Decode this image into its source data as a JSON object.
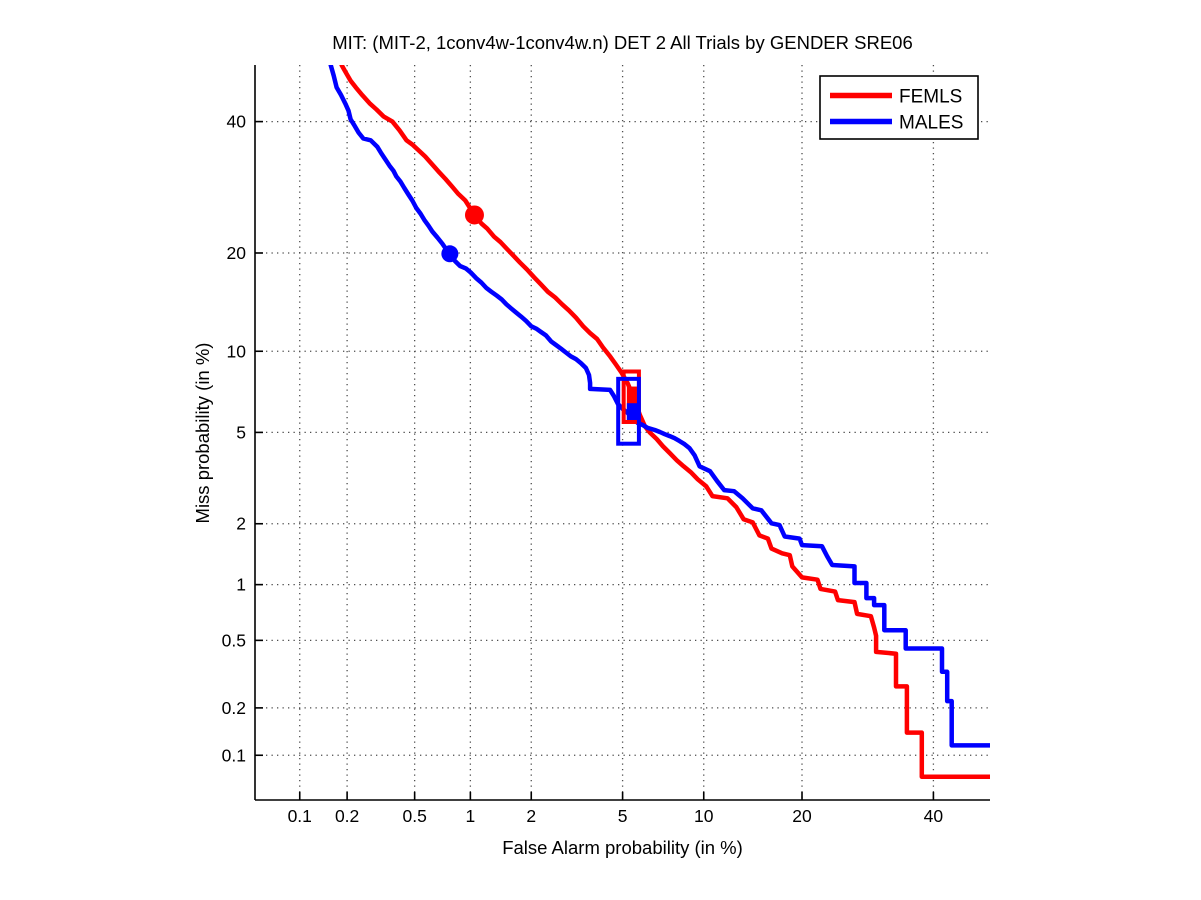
{
  "figure": {
    "title": "MIT: (MIT-2, 1conv4w-1conv4w.n) DET 2 All Trials by GENDER SRE06",
    "xlabel": "False Alarm probability (in %)",
    "ylabel": "Miss probability (in %)"
  },
  "chart_data": {
    "type": "line",
    "subtype": "DET curve, probit-probit (normal deviate) scale",
    "title": "MIT: (MIT-2, 1conv4w-1conv4w.n) DET 2 All Trials by GENDER SRE06",
    "xlabel": "False Alarm probability (in %)",
    "ylabel": "Miss probability (in %)",
    "xlim_pct": [
      0.05,
      50
    ],
    "ylim_pct": [
      0.05,
      50
    ],
    "x_ticks_pct": [
      0.1,
      0.2,
      0.5,
      1,
      2,
      5,
      10,
      20,
      40
    ],
    "y_ticks_pct": [
      0.1,
      0.2,
      0.5,
      1,
      2,
      5,
      10,
      20,
      40
    ],
    "grid": "dotted",
    "axis_color": "#000000",
    "legend": {
      "position": "top-right",
      "entries": [
        {
          "label": "FEMLS",
          "color": "#ff0000"
        },
        {
          "label": "MALES",
          "color": "#0000ff"
        }
      ]
    },
    "series": [
      {
        "name": "FEMLS",
        "color": "#ff0000",
        "points_fa_miss_pct": [
          [
            0.185,
            50
          ],
          [
            0.196,
            48.7
          ],
          [
            0.21,
            47.2
          ],
          [
            0.226,
            46.0
          ],
          [
            0.248,
            44.6
          ],
          [
            0.274,
            43.2
          ],
          [
            0.301,
            42.1
          ],
          [
            0.331,
            40.9
          ],
          [
            0.373,
            40.0
          ],
          [
            0.41,
            38.5
          ],
          [
            0.45,
            36.8
          ],
          [
            0.485,
            36.1
          ],
          [
            0.523,
            35.2
          ],
          [
            0.573,
            34.1
          ],
          [
            0.627,
            32.8
          ],
          [
            0.676,
            31.7
          ],
          [
            0.738,
            30.5
          ],
          [
            0.803,
            29.3
          ],
          [
            0.865,
            28.2
          ],
          [
            0.941,
            27.2
          ],
          [
            1.05,
            25.1
          ],
          [
            1.14,
            23.9
          ],
          [
            1.22,
            23.2
          ],
          [
            1.32,
            22.1
          ],
          [
            1.42,
            21.4
          ],
          [
            1.53,
            20.5
          ],
          [
            1.64,
            19.7
          ],
          [
            1.77,
            18.8
          ],
          [
            1.91,
            18.0
          ],
          [
            2.06,
            17.1
          ],
          [
            2.22,
            16.3
          ],
          [
            2.39,
            15.5
          ],
          [
            2.58,
            14.9
          ],
          [
            2.77,
            14.2
          ],
          [
            2.97,
            13.6
          ],
          [
            3.19,
            12.9
          ],
          [
            3.43,
            12.1
          ],
          [
            3.67,
            11.5
          ],
          [
            3.93,
            11.0
          ],
          [
            4.16,
            10.3
          ],
          [
            4.45,
            9.6
          ],
          [
            4.7,
            9.0
          ],
          [
            4.96,
            8.4
          ],
          [
            5.24,
            7.7
          ],
          [
            5.44,
            7.1
          ],
          [
            5.64,
            6.5
          ],
          [
            5.85,
            5.85
          ],
          [
            6.11,
            5.3
          ],
          [
            6.38,
            5.0
          ],
          [
            6.79,
            4.7
          ],
          [
            7.15,
            4.4
          ],
          [
            7.58,
            4.12
          ],
          [
            8.04,
            3.84
          ],
          [
            8.51,
            3.62
          ],
          [
            9.01,
            3.42
          ],
          [
            9.53,
            3.18
          ],
          [
            10.2,
            2.96
          ],
          [
            10.7,
            2.68
          ],
          [
            12.0,
            2.62
          ],
          [
            12.8,
            2.39
          ],
          [
            13.5,
            2.1
          ],
          [
            14.4,
            2.03
          ],
          [
            15.1,
            1.76
          ],
          [
            16.0,
            1.7
          ],
          [
            16.4,
            1.52
          ],
          [
            17.6,
            1.44
          ],
          [
            18.5,
            1.41
          ],
          [
            18.8,
            1.24
          ],
          [
            20.0,
            1.09
          ],
          [
            22.0,
            1.06
          ],
          [
            22.4,
            0.95
          ],
          [
            24.4,
            0.92
          ],
          [
            24.8,
            0.83
          ],
          [
            27.2,
            0.81
          ],
          [
            27.6,
            0.7
          ],
          [
            29.7,
            0.68
          ],
          [
            30.2,
            0.59
          ],
          [
            30.5,
            0.53
          ],
          [
            30.5,
            0.43
          ],
          [
            33.7,
            0.42
          ],
          [
            33.7,
            0.27
          ],
          [
            35.5,
            0.27
          ],
          [
            35.5,
            0.14
          ],
          [
            38.0,
            0.14
          ],
          [
            38.0,
            0.072
          ],
          [
            50,
            0.072
          ]
        ],
        "dot_marker": {
          "fa": 1.05,
          "miss": 25.1
        },
        "box_marker": {
          "fa": [
            5.05,
            5.8
          ],
          "miss": [
            5.5,
            8.5
          ]
        },
        "box_marker_fill": {
          "fa": [
            5.2,
            5.7
          ],
          "miss": [
            5.6,
            7.5
          ]
        }
      },
      {
        "name": "MALES",
        "color": "#0000ff",
        "points_fa_miss_pct": [
          [
            0.158,
            50
          ],
          [
            0.165,
            48.1
          ],
          [
            0.172,
            46.0
          ],
          [
            0.183,
            44.7
          ],
          [
            0.196,
            43.0
          ],
          [
            0.204,
            41.9
          ],
          [
            0.21,
            40.4
          ],
          [
            0.222,
            39.3
          ],
          [
            0.235,
            38.1
          ],
          [
            0.251,
            37.1
          ],
          [
            0.278,
            36.8
          ],
          [
            0.305,
            35.7
          ],
          [
            0.322,
            34.6
          ],
          [
            0.34,
            33.6
          ],
          [
            0.359,
            32.6
          ],
          [
            0.378,
            31.8
          ],
          [
            0.393,
            30.9
          ],
          [
            0.415,
            30.1
          ],
          [
            0.437,
            29.1
          ],
          [
            0.461,
            28.1
          ],
          [
            0.485,
            27.2
          ],
          [
            0.511,
            26.1
          ],
          [
            0.539,
            25.3
          ],
          [
            0.566,
            24.4
          ],
          [
            0.597,
            23.6
          ],
          [
            0.627,
            22.8
          ],
          [
            0.668,
            22.0
          ],
          [
            0.71,
            21.2
          ],
          [
            0.775,
            19.9
          ],
          [
            0.832,
            19.0
          ],
          [
            0.885,
            18.4
          ],
          [
            0.95,
            18.1
          ],
          [
            1.01,
            17.6
          ],
          [
            1.07,
            17.0
          ],
          [
            1.14,
            16.5
          ],
          [
            1.21,
            15.9
          ],
          [
            1.28,
            15.5
          ],
          [
            1.36,
            15.1
          ],
          [
            1.44,
            14.7
          ],
          [
            1.52,
            14.2
          ],
          [
            1.6,
            13.8
          ],
          [
            1.69,
            13.4
          ],
          [
            1.79,
            13.0
          ],
          [
            1.89,
            12.6
          ],
          [
            2.0,
            12.1
          ],
          [
            2.11,
            11.9
          ],
          [
            2.22,
            11.6
          ],
          [
            2.34,
            11.3
          ],
          [
            2.47,
            10.8
          ],
          [
            2.6,
            10.5
          ],
          [
            2.74,
            10.2
          ],
          [
            2.88,
            9.9
          ],
          [
            3.03,
            9.6
          ],
          [
            3.19,
            9.4
          ],
          [
            3.35,
            9.1
          ],
          [
            3.52,
            8.75
          ],
          [
            3.63,
            8.26
          ],
          [
            3.67,
            7.73
          ],
          [
            3.67,
            7.35
          ],
          [
            4.45,
            7.29
          ],
          [
            4.61,
            6.92
          ],
          [
            4.79,
            6.45
          ],
          [
            5.01,
            6.18
          ],
          [
            5.24,
            5.96
          ],
          [
            5.49,
            5.7
          ],
          [
            5.74,
            5.45
          ],
          [
            6.0,
            5.35
          ],
          [
            6.27,
            5.21
          ],
          [
            6.67,
            5.11
          ],
          [
            6.97,
            5.02
          ],
          [
            7.27,
            4.92
          ],
          [
            7.58,
            4.83
          ],
          [
            7.9,
            4.74
          ],
          [
            8.23,
            4.61
          ],
          [
            8.58,
            4.48
          ],
          [
            8.93,
            4.31
          ],
          [
            9.3,
            4.03
          ],
          [
            9.68,
            3.62
          ],
          [
            10.5,
            3.45
          ],
          [
            11.1,
            3.12
          ],
          [
            11.7,
            2.85
          ],
          [
            12.6,
            2.82
          ],
          [
            13.4,
            2.62
          ],
          [
            14.4,
            2.36
          ],
          [
            15.3,
            2.31
          ],
          [
            16.4,
            2.01
          ],
          [
            17.3,
            1.97
          ],
          [
            17.9,
            1.74
          ],
          [
            19.7,
            1.7
          ],
          [
            20.0,
            1.58
          ],
          [
            22.6,
            1.56
          ],
          [
            23.3,
            1.39
          ],
          [
            24.0,
            1.26
          ],
          [
            27.2,
            1.24
          ],
          [
            27.2,
            1.02
          ],
          [
            29.0,
            1.02
          ],
          [
            29.0,
            0.85
          ],
          [
            30.2,
            0.85
          ],
          [
            30.2,
            0.78
          ],
          [
            31.8,
            0.78
          ],
          [
            31.8,
            0.57
          ],
          [
            35.3,
            0.57
          ],
          [
            35.3,
            0.45
          ],
          [
            41.5,
            0.45
          ],
          [
            41.5,
            0.33
          ],
          [
            42.4,
            0.33
          ],
          [
            42.4,
            0.22
          ],
          [
            43.2,
            0.22
          ],
          [
            43.2,
            0.116
          ],
          [
            50,
            0.116
          ]
        ],
        "dot_marker": {
          "fa": 0.78,
          "miss": 19.9
        },
        "box_marker": {
          "fa": [
            4.8,
            5.8
          ],
          "miss": [
            4.5,
            8.0
          ]
        },
        "box_marker_fill": {
          "fa": [
            5.2,
            5.75
          ],
          "miss": [
            5.6,
            6.5
          ]
        }
      }
    ]
  }
}
